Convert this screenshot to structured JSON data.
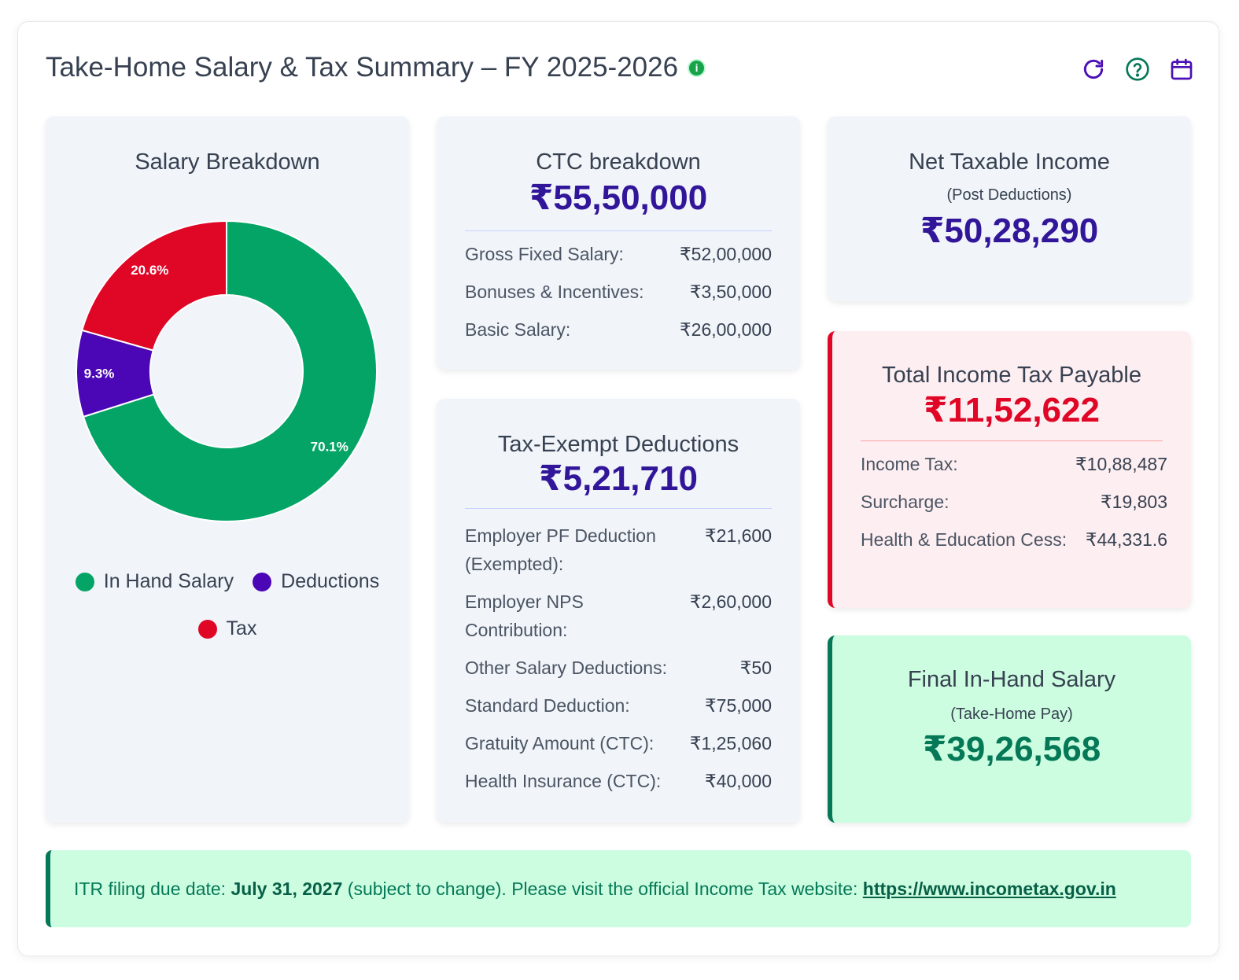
{
  "header": {
    "title": "Take-Home Salary & Tax Summary – FY 2025-2026",
    "info_icon": "i",
    "icons": [
      "refresh-icon",
      "help-icon",
      "calendar-icon"
    ]
  },
  "colors": {
    "in_hand": "#04a466",
    "deductions": "#4b06b5",
    "tax": "#df0626",
    "primary": "#32169a"
  },
  "salary_breakdown": {
    "title": "Salary Breakdown",
    "legend": [
      "In Hand Salary",
      "Deductions",
      "Tax"
    ]
  },
  "chart_data": {
    "type": "pie",
    "title": "Salary Breakdown",
    "donut": true,
    "categories": [
      "In Hand Salary",
      "Deductions",
      "Tax"
    ],
    "values": [
      70.1,
      9.3,
      20.6
    ],
    "labels": [
      "70.1%",
      "9.3%",
      "20.6%"
    ],
    "colors": [
      "#04a466",
      "#4b06b5",
      "#df0626"
    ],
    "legend_position": "bottom"
  },
  "ctc": {
    "title": "CTC breakdown",
    "amount": "₹55,50,000",
    "rows": [
      {
        "label": "Gross Fixed Salary:",
        "value": "₹52,00,000"
      },
      {
        "label": "Bonuses & Incentives:",
        "value": "₹3,50,000"
      },
      {
        "label": "Basic Salary:",
        "value": "₹26,00,000"
      }
    ]
  },
  "exempt": {
    "title": "Tax-Exempt Deductions",
    "amount": "₹5,21,710",
    "rows": [
      {
        "label": "Employer PF Deduction (Exempted):",
        "value": "₹21,600"
      },
      {
        "label": "Employer NPS Contribution:",
        "value": "₹2,60,000"
      },
      {
        "label": "Other Salary Deductions:",
        "value": "₹50"
      },
      {
        "label": "Standard Deduction:",
        "value": "₹75,000"
      },
      {
        "label": "Gratuity Amount (CTC):",
        "value": "₹1,25,060"
      },
      {
        "label": "Health Insurance (CTC):",
        "value": "₹40,000"
      }
    ]
  },
  "taxable": {
    "title": "Net Taxable Income",
    "subtitle": "(Post Deductions)",
    "amount": "₹50,28,290"
  },
  "tax": {
    "title": "Total Income Tax Payable",
    "amount": "₹11,52,622",
    "rows": [
      {
        "label": "Income Tax:",
        "value": "₹10,88,487"
      },
      {
        "label": "Surcharge:",
        "value": "₹19,803"
      },
      {
        "label": "Health & Education Cess:",
        "value": "₹44,331.6"
      }
    ]
  },
  "inhand": {
    "title": "Final In-Hand Salary",
    "subtitle": "(Take-Home Pay)",
    "amount": "₹39,26,568"
  },
  "footer": {
    "prefix": "ITR filing due date:",
    "date": "July 31, 2027",
    "middle": "(subject to change). Please visit the official Income Tax website:",
    "link": "https://www.incometax.gov.in"
  }
}
